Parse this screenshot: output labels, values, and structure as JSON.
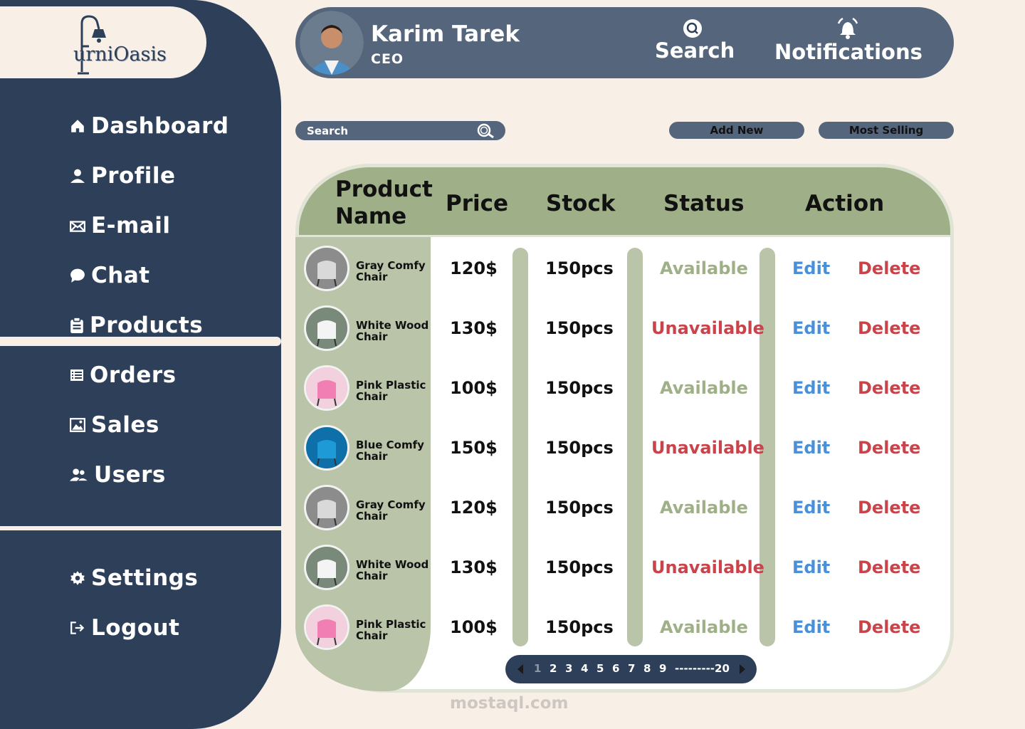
{
  "brand": {
    "logo_text": "urniOasis"
  },
  "sidebar": {
    "items": [
      {
        "label": "Dashboard",
        "icon": "home-icon"
      },
      {
        "label": "Profile",
        "icon": "user-icon"
      },
      {
        "label": "E-mail",
        "icon": "envelope-icon"
      },
      {
        "label": "Chat",
        "icon": "chat-bubble-icon"
      },
      {
        "label": "Products",
        "icon": "clipboard-icon",
        "active": true
      },
      {
        "label": "Orders",
        "icon": "list-icon"
      },
      {
        "label": "Sales",
        "icon": "image-icon"
      },
      {
        "label": "Users",
        "icon": "users-icon"
      }
    ],
    "bottom": [
      {
        "label": "Settings",
        "icon": "gear-icon"
      },
      {
        "label": "Logout",
        "icon": "logout-icon"
      }
    ]
  },
  "header": {
    "user_name": "Karim Tarek",
    "user_role": "CEO",
    "search_label": "Search",
    "notifications_label": "Notifications"
  },
  "toolbar": {
    "search_placeholder": "Search",
    "add_new_label": "Add New",
    "most_selling_label": "Most Selling"
  },
  "table": {
    "headers": {
      "name_line1": "Product",
      "name_line2": "Name",
      "price": "Price",
      "stock": "Stock",
      "status": "Status",
      "action": "Action"
    },
    "rows": [
      {
        "name1": "Gray Comfy",
        "name2": "Chair",
        "price": "120$",
        "stock": "150pcs",
        "status": "Available",
        "available": true,
        "edit": "Edit",
        "delete": "Delete",
        "img": "gray"
      },
      {
        "name1": "White Wood",
        "name2": "Chair",
        "price": "130$",
        "stock": "150pcs",
        "status": "Unavailable",
        "available": false,
        "edit": "Edit",
        "delete": "Delete",
        "img": "white"
      },
      {
        "name1": "Pink Plastic",
        "name2": "Chair",
        "price": "100$",
        "stock": "150pcs",
        "status": "Available",
        "available": true,
        "edit": "Edit",
        "delete": "Delete",
        "img": "pink"
      },
      {
        "name1": "Blue Comfy",
        "name2": "Chair",
        "price": "150$",
        "stock": "150pcs",
        "status": "Unavailable",
        "available": false,
        "edit": "Edit",
        "delete": "Delete",
        "img": "blue"
      },
      {
        "name1": "Gray Comfy",
        "name2": "Chair",
        "price": "120$",
        "stock": "150pcs",
        "status": "Available",
        "available": true,
        "edit": "Edit",
        "delete": "Delete",
        "img": "gray"
      },
      {
        "name1": "White Wood",
        "name2": "Chair",
        "price": "130$",
        "stock": "150pcs",
        "status": "Unavailable",
        "available": false,
        "edit": "Edit",
        "delete": "Delete",
        "img": "white"
      },
      {
        "name1": "Pink Plastic",
        "name2": "Chair",
        "price": "100$",
        "stock": "150pcs",
        "status": "Available",
        "available": true,
        "edit": "Edit",
        "delete": "Delete",
        "img": "pink"
      }
    ]
  },
  "pagination": {
    "pages": [
      "1",
      "2",
      "3",
      "4",
      "5",
      "6",
      "7",
      "8",
      "9"
    ],
    "last": "---------20",
    "current": "1"
  },
  "watermark": {
    "text": "mostaql.com"
  },
  "colors": {
    "navy": "#2e4059",
    "slate": "#55657c",
    "cream": "#f8efe7",
    "sage": "#9faf88",
    "sage_light": "#b9c4a8",
    "available": "#9faf88",
    "unavailable": "#c8434a",
    "edit": "#4a90d9"
  }
}
